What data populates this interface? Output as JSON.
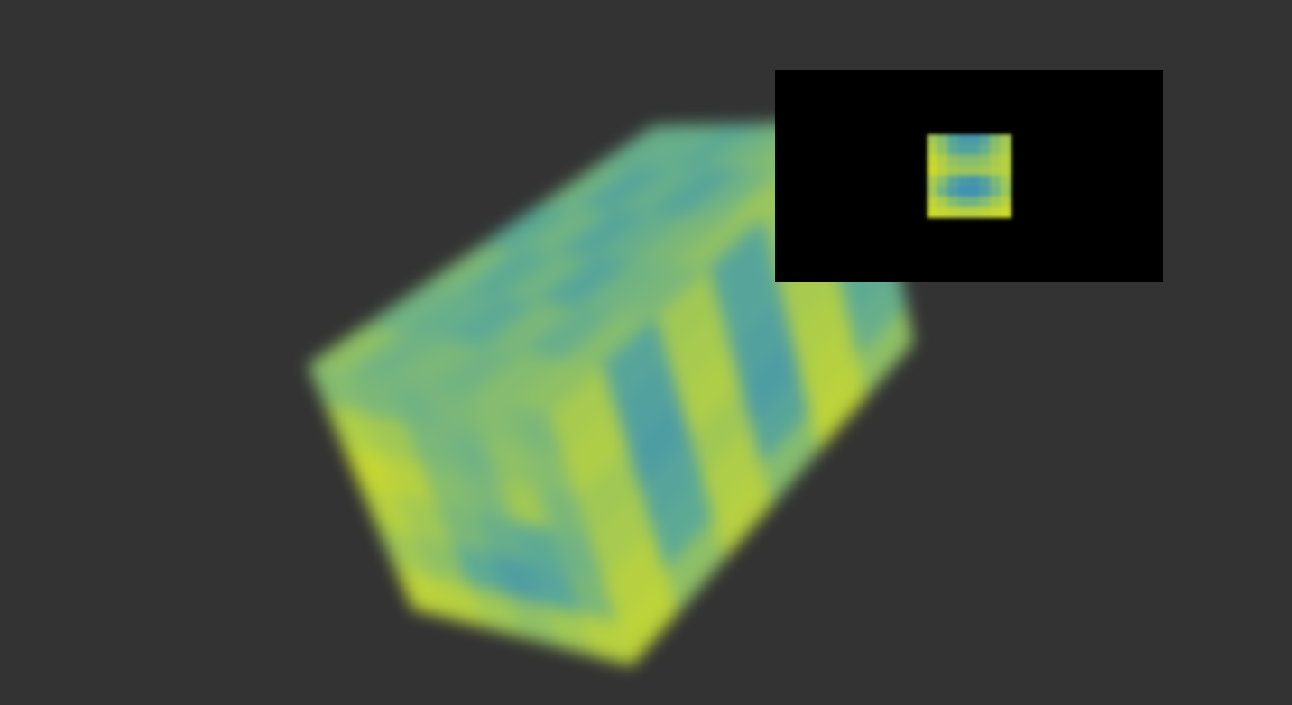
{
  "chart_data": {
    "type": "volume",
    "colors": [
      "#3d8db5",
      "#5aa897",
      "#9cc65a",
      "#cbd92c"
    ],
    "value_range": [
      0,
      1
    ],
    "faces": {
      "top": [
        [
          0.6,
          0.45,
          0.5,
          0.35,
          0.45,
          0.4
        ],
        [
          0.45,
          0.4,
          0.35,
          0.45,
          0.3,
          0.4
        ],
        [
          0.5,
          0.35,
          0.45,
          0.3,
          0.4,
          0.35
        ],
        [
          0.45,
          0.5,
          0.3,
          0.4,
          0.3,
          0.45
        ],
        [
          0.55,
          0.4,
          0.45,
          0.5,
          0.45,
          0.55
        ],
        [
          0.6,
          0.55,
          0.5,
          0.6,
          0.65,
          0.6
        ]
      ],
      "front": [
        [
          0.55,
          0.5,
          0.45,
          0.5,
          0.55,
          0.5
        ],
        [
          0.8,
          0.7,
          0.5,
          0.45,
          0.6,
          0.55
        ],
        [
          0.95,
          0.85,
          0.55,
          0.5,
          0.7,
          0.5
        ],
        [
          0.85,
          0.7,
          0.5,
          0.4,
          0.35,
          0.45
        ],
        [
          0.7,
          0.6,
          0.35,
          0.2,
          0.3,
          0.5
        ],
        [
          0.9,
          0.85,
          0.7,
          0.6,
          0.7,
          0.85
        ]
      ],
      "right": [
        [
          0.75,
          0.3,
          0.7,
          0.3,
          0.65,
          0.35
        ],
        [
          0.8,
          0.25,
          0.75,
          0.3,
          0.7,
          0.3
        ],
        [
          0.7,
          0.2,
          0.8,
          0.25,
          0.75,
          0.3
        ],
        [
          0.75,
          0.3,
          0.7,
          0.2,
          0.8,
          0.35
        ],
        [
          0.85,
          0.35,
          0.8,
          0.3,
          0.85,
          0.4
        ],
        [
          0.9,
          0.6,
          0.85,
          0.55,
          0.9,
          0.6
        ]
      ]
    },
    "slice": [
      [
        0.7,
        0.55,
        0.3,
        0.15,
        0.15,
        0.3,
        0.55,
        0.7
      ],
      [
        0.8,
        0.6,
        0.35,
        0.25,
        0.25,
        0.4,
        0.6,
        0.75
      ],
      [
        0.95,
        0.8,
        0.6,
        0.55,
        0.55,
        0.6,
        0.75,
        0.85
      ],
      [
        1.0,
        0.85,
        0.7,
        0.65,
        0.65,
        0.7,
        0.8,
        0.85
      ],
      [
        0.75,
        0.55,
        0.3,
        0.15,
        0.1,
        0.25,
        0.5,
        0.7
      ],
      [
        0.7,
        0.45,
        0.2,
        0.05,
        0.05,
        0.2,
        0.45,
        0.65
      ],
      [
        0.9,
        0.75,
        0.55,
        0.45,
        0.45,
        0.55,
        0.7,
        0.85
      ],
      [
        1.0,
        0.95,
        0.9,
        0.85,
        0.85,
        0.9,
        0.95,
        1.0
      ]
    ]
  }
}
